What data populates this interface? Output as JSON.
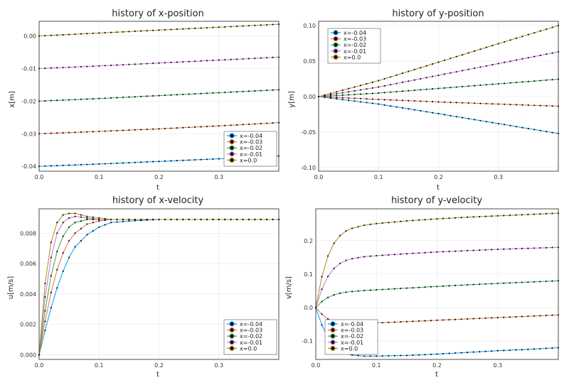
{
  "chart_data": [
    {
      "type": "line",
      "title": "history of x-position",
      "xlabel": "t",
      "ylabel": "x[m]",
      "xlim": [
        0,
        0.4
      ],
      "ylim": [
        -0.0415,
        0.0045
      ],
      "xticks": [
        0.0,
        0.1,
        0.2,
        0.3
      ],
      "xtick_labels": [
        "0.0",
        "0.1",
        "0.2",
        "0.3"
      ],
      "yticks": [
        -0.04,
        -0.03,
        -0.02,
        -0.01,
        0.0
      ],
      "ytick_labels": [
        "-0.04",
        "-0.03",
        "-0.02",
        "-0.01",
        "0.00"
      ],
      "grid": true,
      "legend_position": "bottom-right",
      "series": [
        {
          "name": "x=-0.04",
          "color": "#009AFA",
          "x": [
            0,
            0.1,
            0.2,
            0.3,
            0.4
          ],
          "y": [
            -0.04,
            -0.0393,
            -0.0385,
            -0.0377,
            -0.0368
          ]
        },
        {
          "name": "x=-0.03",
          "color": "#E36F47",
          "x": [
            0,
            0.1,
            0.2,
            0.3,
            0.4
          ],
          "y": [
            -0.03,
            -0.0293,
            -0.0285,
            -0.0276,
            -0.0266
          ]
        },
        {
          "name": "x=-0.02",
          "color": "#3EA44E",
          "x": [
            0,
            0.1,
            0.2,
            0.3,
            0.4
          ],
          "y": [
            -0.02,
            -0.0192,
            -0.0183,
            -0.0174,
            -0.0165
          ]
        },
        {
          "name": "x=-0.01",
          "color": "#C371D2",
          "x": [
            0,
            0.1,
            0.2,
            0.3,
            0.4
          ],
          "y": [
            -0.01,
            -0.0092,
            -0.0083,
            -0.0074,
            -0.0065
          ]
        },
        {
          "name": "x=0.0",
          "color": "#AC8D18",
          "x": [
            0,
            0.1,
            0.2,
            0.3,
            0.4
          ],
          "y": [
            0.0,
            0.0009,
            0.0018,
            0.0027,
            0.0036
          ]
        }
      ]
    },
    {
      "type": "line",
      "title": "history of y-position",
      "xlabel": "t",
      "ylabel": "y[m]",
      "xlim": [
        0,
        0.4
      ],
      "ylim": [
        -0.105,
        0.106
      ],
      "xticks": [
        0.0,
        0.1,
        0.2,
        0.3
      ],
      "xtick_labels": [
        "0.0",
        "0.1",
        "0.2",
        "0.3"
      ],
      "yticks": [
        -0.1,
        -0.05,
        0.0,
        0.05,
        0.1
      ],
      "ytick_labels": [
        "-0.10",
        "-0.05",
        "0.00",
        "0.05",
        "0.10"
      ],
      "grid": true,
      "legend_position": "top-left",
      "series": [
        {
          "name": "x=-0.04",
          "color": "#009AFA",
          "x": [
            0,
            0.1,
            0.2,
            0.3,
            0.4
          ],
          "y": [
            0.0,
            -0.0105,
            -0.024,
            -0.038,
            -0.052
          ]
        },
        {
          "name": "x=-0.03",
          "color": "#E36F47",
          "x": [
            0,
            0.1,
            0.2,
            0.3,
            0.4
          ],
          "y": [
            0.0,
            -0.004,
            -0.0075,
            -0.0105,
            -0.0135
          ]
        },
        {
          "name": "x=-0.02",
          "color": "#3EA44E",
          "x": [
            0,
            0.1,
            0.2,
            0.3,
            0.4
          ],
          "y": [
            0.0,
            0.005,
            0.0115,
            0.018,
            0.0245
          ]
        },
        {
          "name": "x=-0.01",
          "color": "#C371D2",
          "x": [
            0,
            0.1,
            0.2,
            0.3,
            0.4
          ],
          "y": [
            0.0,
            0.0135,
            0.03,
            0.0465,
            0.063
          ]
        },
        {
          "name": "x=0.0",
          "color": "#AC8D18",
          "x": [
            0,
            0.1,
            0.2,
            0.3,
            0.4
          ],
          "y": [
            0.0,
            0.0225,
            0.0485,
            0.0745,
            0.1
          ]
        }
      ]
    },
    {
      "type": "line",
      "title": "history of x-velocity",
      "xlabel": "t",
      "ylabel": "u[m/s]",
      "xlim": [
        0,
        0.4
      ],
      "ylim": [
        -0.0003,
        0.0096
      ],
      "xticks": [
        0.0,
        0.1,
        0.2,
        0.3
      ],
      "xtick_labels": [
        "0.0",
        "0.1",
        "0.2",
        "0.3"
      ],
      "yticks": [
        0.0,
        0.002,
        0.004,
        0.006,
        0.008
      ],
      "ytick_labels": [
        "0.000",
        "0.002",
        "0.004",
        "0.006",
        "0.008"
      ],
      "grid": true,
      "legend_position": "bottom-right",
      "series": [
        {
          "name": "x=-0.04",
          "color": "#009AFA",
          "x": [
            0,
            0.01,
            0.02,
            0.03,
            0.04,
            0.05,
            0.06,
            0.08,
            0.1,
            0.12,
            0.15,
            0.2,
            0.3,
            0.4
          ],
          "y": [
            0.0,
            0.0016,
            0.0031,
            0.0044,
            0.0055,
            0.0064,
            0.0071,
            0.0079,
            0.0084,
            0.0087,
            0.0088,
            0.0089,
            0.0089,
            0.0089
          ]
        },
        {
          "name": "x=-0.03",
          "color": "#E36F47",
          "x": [
            0,
            0.01,
            0.02,
            0.03,
            0.04,
            0.05,
            0.06,
            0.08,
            0.1,
            0.12,
            0.15,
            0.2,
            0.3,
            0.4
          ],
          "y": [
            0.0,
            0.0022,
            0.0041,
            0.0056,
            0.0067,
            0.0075,
            0.008,
            0.0086,
            0.0088,
            0.0089,
            0.0089,
            0.0089,
            0.0089,
            0.0089
          ]
        },
        {
          "name": "x=-0.02",
          "color": "#3EA44E",
          "x": [
            0,
            0.01,
            0.02,
            0.03,
            0.04,
            0.05,
            0.06,
            0.08,
            0.1,
            0.12,
            0.15,
            0.2,
            0.3,
            0.4
          ],
          "y": [
            0.0,
            0.0029,
            0.0052,
            0.0068,
            0.0078,
            0.0084,
            0.0087,
            0.0089,
            0.0089,
            0.0089,
            0.0089,
            0.0089,
            0.0089,
            0.0089
          ]
        },
        {
          "name": "x=-0.01",
          "color": "#C371D2",
          "x": [
            0,
            0.01,
            0.02,
            0.03,
            0.04,
            0.05,
            0.06,
            0.08,
            0.1,
            0.12,
            0.15,
            0.2,
            0.3,
            0.4
          ],
          "y": [
            0.0,
            0.0038,
            0.0064,
            0.008,
            0.0087,
            0.009,
            0.0091,
            0.009,
            0.0089,
            0.0089,
            0.0089,
            0.0089,
            0.0089,
            0.0089
          ]
        },
        {
          "name": "x=0.0",
          "color": "#AC8D18",
          "x": [
            0,
            0.01,
            0.02,
            0.03,
            0.04,
            0.05,
            0.06,
            0.08,
            0.1,
            0.12,
            0.15,
            0.2,
            0.3,
            0.4
          ],
          "y": [
            0.0,
            0.0047,
            0.0074,
            0.0087,
            0.0092,
            0.0093,
            0.0093,
            0.0091,
            0.009,
            0.0089,
            0.0089,
            0.0089,
            0.0089,
            0.0089
          ]
        }
      ]
    },
    {
      "type": "line",
      "title": "history of y-velocity",
      "xlabel": "t",
      "ylabel": "v[m/s]",
      "xlim": [
        0,
        0.4
      ],
      "ylim": [
        -0.155,
        0.295
      ],
      "xticks": [
        0.0,
        0.1,
        0.2,
        0.3
      ],
      "xtick_labels": [
        "0.0",
        "0.1",
        "0.2",
        "0.3"
      ],
      "yticks": [
        -0.1,
        0.0,
        0.1,
        0.2
      ],
      "ytick_labels": [
        "-0.1",
        "0.0",
        "0.1",
        "0.2"
      ],
      "grid": true,
      "legend_position": "bottom-left",
      "series": [
        {
          "name": "x=-0.04",
          "color": "#009AFA",
          "x": [
            0,
            0.01,
            0.02,
            0.03,
            0.04,
            0.05,
            0.06,
            0.08,
            0.1,
            0.15,
            0.2,
            0.25,
            0.3,
            0.35,
            0.4
          ],
          "y": [
            0.0,
            -0.052,
            -0.09,
            -0.115,
            -0.13,
            -0.138,
            -0.142,
            -0.145,
            -0.145,
            -0.143,
            -0.139,
            -0.134,
            -0.129,
            -0.125,
            -0.12
          ]
        },
        {
          "name": "x=-0.03",
          "color": "#E36F47",
          "x": [
            0,
            0.01,
            0.02,
            0.03,
            0.04,
            0.05,
            0.06,
            0.08,
            0.1,
            0.15,
            0.2,
            0.25,
            0.3,
            0.35,
            0.4
          ],
          "y": [
            0.0,
            -0.02,
            -0.034,
            -0.042,
            -0.046,
            -0.048,
            -0.048,
            -0.047,
            -0.046,
            -0.042,
            -0.038,
            -0.034,
            -0.03,
            -0.026,
            -0.022
          ]
        },
        {
          "name": "x=-0.02",
          "color": "#3EA44E",
          "x": [
            0,
            0.01,
            0.02,
            0.03,
            0.04,
            0.05,
            0.06,
            0.08,
            0.1,
            0.15,
            0.2,
            0.25,
            0.3,
            0.35,
            0.4
          ],
          "y": [
            0.0,
            0.018,
            0.03,
            0.038,
            0.043,
            0.046,
            0.048,
            0.051,
            0.053,
            0.058,
            0.063,
            0.068,
            0.072,
            0.076,
            0.08
          ]
        },
        {
          "name": "x=-0.01",
          "color": "#C371D2",
          "x": [
            0,
            0.01,
            0.02,
            0.03,
            0.04,
            0.05,
            0.06,
            0.08,
            0.1,
            0.15,
            0.2,
            0.25,
            0.3,
            0.35,
            0.4
          ],
          "y": [
            0.0,
            0.055,
            0.093,
            0.117,
            0.132,
            0.141,
            0.146,
            0.152,
            0.155,
            0.161,
            0.166,
            0.17,
            0.174,
            0.177,
            0.18
          ]
        },
        {
          "name": "x=0.0",
          "color": "#AC8D18",
          "x": [
            0,
            0.01,
            0.02,
            0.03,
            0.04,
            0.05,
            0.06,
            0.08,
            0.1,
            0.15,
            0.2,
            0.25,
            0.3,
            0.35,
            0.4
          ],
          "y": [
            0.0,
            0.092,
            0.154,
            0.192,
            0.215,
            0.229,
            0.237,
            0.246,
            0.251,
            0.259,
            0.265,
            0.27,
            0.274,
            0.278,
            0.282
          ]
        }
      ]
    }
  ]
}
